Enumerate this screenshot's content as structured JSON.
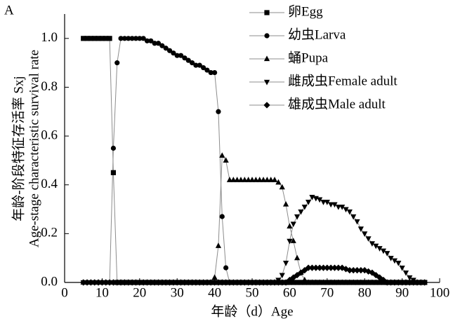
{
  "chart_data": {
    "type": "line",
    "panel_label": "A",
    "xlabel": "年龄（d）Age",
    "ylabel": [
      "年龄-阶段特征存活率 Sxj",
      "Age-stage characteristic survival rate"
    ],
    "xlim": [
      0,
      100
    ],
    "ylim": [
      0,
      1.1
    ],
    "xticks": [
      0,
      10,
      20,
      30,
      40,
      50,
      60,
      70,
      80,
      90,
      100
    ],
    "yticks": [
      {
        "value": 0,
        "label": "0.0"
      },
      0.2,
      0.4,
      0.6,
      0.8,
      {
        "value": 1,
        "label": "1.0"
      }
    ],
    "line_color": "#8c8c8c",
    "x": [
      5,
      6,
      7,
      8,
      9,
      10,
      11,
      12,
      13,
      14,
      15,
      16,
      17,
      18,
      19,
      20,
      21,
      22,
      23,
      24,
      25,
      26,
      27,
      28,
      29,
      30,
      31,
      32,
      33,
      34,
      35,
      36,
      37,
      38,
      39,
      40,
      41,
      42,
      43,
      44,
      45,
      46,
      47,
      48,
      49,
      50,
      51,
      52,
      53,
      54,
      55,
      56,
      57,
      58,
      59,
      60,
      61,
      62,
      63,
      64,
      65,
      66,
      67,
      68,
      69,
      70,
      71,
      72,
      73,
      74,
      75,
      76,
      77,
      78,
      79,
      80,
      81,
      82,
      83,
      84,
      85,
      86,
      87,
      88,
      89,
      90,
      91,
      92,
      93,
      94,
      95,
      96
    ],
    "series": [
      {
        "name": "卵Egg",
        "color": "#000000",
        "marker": "square",
        "values": [
          1,
          1,
          1,
          1,
          1,
          1,
          1,
          1,
          0.45,
          0,
          0,
          0,
          0,
          0,
          0,
          0,
          0,
          0,
          0,
          0,
          0,
          0,
          0,
          0,
          0,
          0,
          0,
          0,
          0,
          0,
          0,
          0,
          0,
          0,
          0,
          0,
          0,
          0,
          0,
          0,
          0,
          0,
          0,
          0,
          0,
          0,
          0,
          0,
          0,
          0,
          0,
          0,
          0,
          0,
          0,
          0,
          0,
          0,
          0,
          0,
          0,
          0,
          0,
          0,
          0,
          0,
          0,
          0,
          0,
          0,
          0,
          0,
          0,
          0,
          0,
          0,
          0,
          0,
          0,
          0,
          0,
          0,
          0,
          0,
          0,
          0,
          0,
          0,
          0,
          0,
          0,
          0
        ]
      },
      {
        "name": "幼虫Larva",
        "color": "#000000",
        "marker": "circle",
        "values": [
          0,
          0,
          0,
          0,
          0,
          0,
          0,
          0,
          0.55,
          0.9,
          1,
          1,
          1,
          1,
          1,
          1,
          1,
          0.99,
          0.99,
          0.98,
          0.98,
          0.97,
          0.96,
          0.95,
          0.94,
          0.93,
          0.93,
          0.92,
          0.91,
          0.9,
          0.89,
          0.89,
          0.88,
          0.87,
          0.86,
          0.86,
          0.7,
          0.27,
          0.06,
          0,
          0,
          0,
          0,
          0,
          0,
          0,
          0,
          0,
          0,
          0,
          0,
          0,
          0,
          0,
          0,
          0,
          0,
          0,
          0,
          0,
          0,
          0,
          0,
          0,
          0,
          0,
          0,
          0,
          0,
          0,
          0,
          0,
          0,
          0,
          0,
          0,
          0,
          0,
          0,
          0,
          0,
          0,
          0,
          0,
          0,
          0,
          0,
          0,
          0,
          0,
          0,
          0
        ]
      },
      {
        "name": "蛹Pupa",
        "color": "#000000",
        "marker": "triangle-up",
        "values": [
          0,
          0,
          0,
          0,
          0,
          0,
          0,
          0,
          0,
          0,
          0,
          0,
          0,
          0,
          0,
          0,
          0,
          0,
          0,
          0,
          0,
          0,
          0,
          0,
          0,
          0,
          0,
          0,
          0,
          0,
          0,
          0,
          0,
          0,
          0,
          0.02,
          0.15,
          0.52,
          0.5,
          0.42,
          0.42,
          0.42,
          0.42,
          0.42,
          0.42,
          0.42,
          0.42,
          0.42,
          0.42,
          0.42,
          0.42,
          0.42,
          0.41,
          0.39,
          0.32,
          0.23,
          0.17,
          0.1,
          0.04,
          0.01,
          0,
          0,
          0,
          0,
          0,
          0,
          0,
          0,
          0,
          0,
          0,
          0,
          0,
          0,
          0,
          0,
          0,
          0,
          0,
          0,
          0,
          0,
          0,
          0,
          0,
          0,
          0,
          0,
          0,
          0,
          0,
          0
        ]
      },
      {
        "name": "雌成虫Female adult",
        "color": "#000000",
        "marker": "triangle-down",
        "values": [
          0,
          0,
          0,
          0,
          0,
          0,
          0,
          0,
          0,
          0,
          0,
          0,
          0,
          0,
          0,
          0,
          0,
          0,
          0,
          0,
          0,
          0,
          0,
          0,
          0,
          0,
          0,
          0,
          0,
          0,
          0,
          0,
          0,
          0,
          0,
          0,
          0,
          0,
          0,
          0,
          0,
          0,
          0,
          0,
          0,
          0,
          0,
          0,
          0,
          0,
          0,
          0,
          0.01,
          0.03,
          0.08,
          0.17,
          0.24,
          0.27,
          0.29,
          0.31,
          0.33,
          0.35,
          0.345,
          0.34,
          0.33,
          0.33,
          0.32,
          0.32,
          0.31,
          0.31,
          0.3,
          0.29,
          0.27,
          0.25,
          0.22,
          0.2,
          0.18,
          0.16,
          0.15,
          0.14,
          0.13,
          0.12,
          0.1,
          0.09,
          0.08,
          0.06,
          0.04,
          0.02,
          0.01,
          0,
          0,
          0
        ]
      },
      {
        "name": "雄成虫Male adult",
        "color": "#000000",
        "marker": "diamond",
        "values": [
          0,
          0,
          0,
          0,
          0,
          0,
          0,
          0,
          0,
          0,
          0,
          0,
          0,
          0,
          0,
          0,
          0,
          0,
          0,
          0,
          0,
          0,
          0,
          0,
          0,
          0,
          0,
          0,
          0,
          0,
          0,
          0,
          0,
          0,
          0,
          0,
          0,
          0,
          0,
          0,
          0,
          0,
          0,
          0,
          0,
          0,
          0,
          0,
          0,
          0,
          0,
          0,
          0,
          0,
          0,
          0.01,
          0.02,
          0.03,
          0.04,
          0.05,
          0.06,
          0.06,
          0.06,
          0.06,
          0.06,
          0.06,
          0.06,
          0.06,
          0.06,
          0.06,
          0.055,
          0.05,
          0.05,
          0.05,
          0.05,
          0.05,
          0.045,
          0.04,
          0.03,
          0.02,
          0.01,
          0,
          0,
          0,
          0,
          0,
          0,
          0,
          0,
          0,
          0,
          0
        ]
      }
    ]
  }
}
